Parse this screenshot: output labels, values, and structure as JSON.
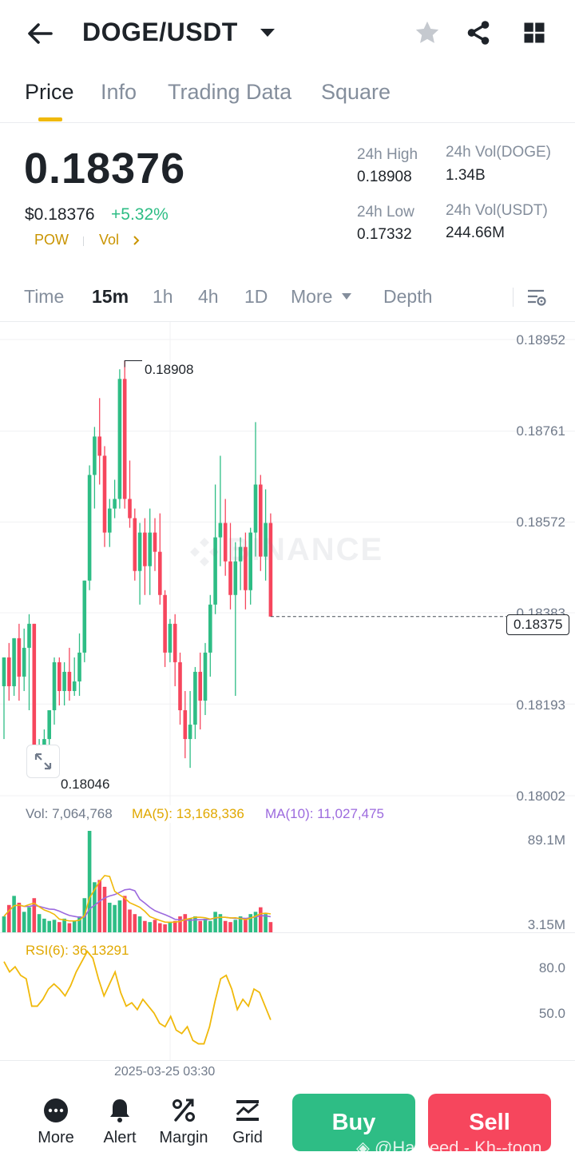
{
  "header": {
    "pair": "DOGE/USDT"
  },
  "tabs": [
    {
      "label": "Price"
    },
    {
      "label": "Info"
    },
    {
      "label": "Trading Data"
    },
    {
      "label": "Square"
    }
  ],
  "ticker": {
    "price": "0.18376",
    "usd_price": "$0.18376",
    "change": "+5.32%",
    "tag1": "POW",
    "tag2": "Vol",
    "high_label": "24h High",
    "high": "0.18908",
    "low_label": "24h Low",
    "low": "0.17332",
    "vol_base_label": "24h Vol(DOGE)",
    "vol_base": "1.34B",
    "vol_quote_label": "24h Vol(USDT)",
    "vol_quote": "244.66M"
  },
  "timeframes": [
    {
      "label": "Time"
    },
    {
      "label": "15m"
    },
    {
      "label": "1h"
    },
    {
      "label": "4h"
    },
    {
      "label": "1D"
    },
    {
      "label": "More"
    },
    {
      "label": "Depth"
    }
  ],
  "chart": {
    "price_axis": [
      "0.18952",
      "0.18761",
      "0.18572",
      "0.18383",
      "0.18193",
      "0.18002"
    ],
    "current_price": "0.18375",
    "high_marker": "0.18908",
    "low_marker": "0.18046",
    "watermark": "BINANCE",
    "vol_label": "Vol: 7,064,768",
    "ma5_label": "MA(5): 13,168,336",
    "ma10_label": "MA(10): 11,027,475",
    "vol_axis": [
      "89.1M",
      "3.15M"
    ],
    "rsi_label": "RSI(6): 36.13291",
    "rsi_axis": [
      "80.0",
      "50.0"
    ],
    "time_label": "2025-03-25 03:30",
    "colors": {
      "up": "#2ebd85",
      "down": "#f6465d",
      "ma5": "#f0b90b",
      "ma10": "#9c6ade"
    }
  },
  "chart_data": {
    "type": "candlestick",
    "y_axis_ticks": [
      0.18952,
      0.18761,
      0.18572,
      0.18383,
      0.18193,
      0.18002
    ],
    "ylim": [
      0.18002,
      0.18952
    ],
    "candles": [
      {
        "o": 0.1823,
        "h": 0.1829,
        "l": 0.1812,
        "c": 0.1829
      },
      {
        "o": 0.1829,
        "h": 0.1832,
        "l": 0.182,
        "c": 0.1823
      },
      {
        "o": 0.1823,
        "h": 0.1833,
        "l": 0.1821,
        "c": 0.1833
      },
      {
        "o": 0.1833,
        "h": 0.1836,
        "l": 0.182,
        "c": 0.1825
      },
      {
        "o": 0.1825,
        "h": 0.1835,
        "l": 0.1822,
        "c": 0.1831
      },
      {
        "o": 0.1831,
        "h": 0.1838,
        "l": 0.1818,
        "c": 0.1836
      },
      {
        "o": 0.1836,
        "h": 0.1836,
        "l": 0.1805,
        "c": 0.1807
      },
      {
        "o": 0.1807,
        "h": 0.1812,
        "l": 0.18046,
        "c": 0.1809
      },
      {
        "o": 0.1809,
        "h": 0.1814,
        "l": 0.1806,
        "c": 0.1812
      },
      {
        "o": 0.1812,
        "h": 0.1818,
        "l": 0.181,
        "c": 0.1818
      },
      {
        "o": 0.1818,
        "h": 0.1829,
        "l": 0.1815,
        "c": 0.1828
      },
      {
        "o": 0.1828,
        "h": 0.1829,
        "l": 0.1819,
        "c": 0.1822
      },
      {
        "o": 0.1822,
        "h": 0.1828,
        "l": 0.1819,
        "c": 0.1826
      },
      {
        "o": 0.1826,
        "h": 0.1831,
        "l": 0.182,
        "c": 0.1822
      },
      {
        "o": 0.1822,
        "h": 0.1829,
        "l": 0.1821,
        "c": 0.1824
      },
      {
        "o": 0.1824,
        "h": 0.1834,
        "l": 0.1821,
        "c": 0.183
      },
      {
        "o": 0.183,
        "h": 0.1845,
        "l": 0.1828,
        "c": 0.1845
      },
      {
        "o": 0.1845,
        "h": 0.1869,
        "l": 0.1843,
        "c": 0.1867
      },
      {
        "o": 0.1867,
        "h": 0.1877,
        "l": 0.186,
        "c": 0.1875
      },
      {
        "o": 0.1875,
        "h": 0.1883,
        "l": 0.1865,
        "c": 0.1871
      },
      {
        "o": 0.1871,
        "h": 0.1873,
        "l": 0.1852,
        "c": 0.1855
      },
      {
        "o": 0.1855,
        "h": 0.1862,
        "l": 0.1852,
        "c": 0.186
      },
      {
        "o": 0.186,
        "h": 0.1866,
        "l": 0.1858,
        "c": 0.1862
      },
      {
        "o": 0.1862,
        "h": 0.1889,
        "l": 0.186,
        "c": 0.1887
      },
      {
        "o": 0.1887,
        "h": 0.18908,
        "l": 0.186,
        "c": 0.1862
      },
      {
        "o": 0.1862,
        "h": 0.187,
        "l": 0.1856,
        "c": 0.1858
      },
      {
        "o": 0.1858,
        "h": 0.186,
        "l": 0.1845,
        "c": 0.1847
      },
      {
        "o": 0.1847,
        "h": 0.1857,
        "l": 0.184,
        "c": 0.1855
      },
      {
        "o": 0.1855,
        "h": 0.1858,
        "l": 0.1842,
        "c": 0.1848
      },
      {
        "o": 0.1848,
        "h": 0.186,
        "l": 0.1842,
        "c": 0.1855
      },
      {
        "o": 0.1855,
        "h": 0.1858,
        "l": 0.1847,
        "c": 0.1851
      },
      {
        "o": 0.1851,
        "h": 0.1859,
        "l": 0.184,
        "c": 0.1842
      },
      {
        "o": 0.1842,
        "h": 0.1843,
        "l": 0.1827,
        "c": 0.183
      },
      {
        "o": 0.183,
        "h": 0.1837,
        "l": 0.1828,
        "c": 0.1836
      },
      {
        "o": 0.1836,
        "h": 0.1838,
        "l": 0.1823,
        "c": 0.1828
      },
      {
        "o": 0.1828,
        "h": 0.183,
        "l": 0.1815,
        "c": 0.1818
      },
      {
        "o": 0.1818,
        "h": 0.1822,
        "l": 0.1808,
        "c": 0.1812
      },
      {
        "o": 0.1812,
        "h": 0.1822,
        "l": 0.1806,
        "c": 0.1815
      },
      {
        "o": 0.1815,
        "h": 0.1827,
        "l": 0.1812,
        "c": 0.1826
      },
      {
        "o": 0.1826,
        "h": 0.183,
        "l": 0.1814,
        "c": 0.182
      },
      {
        "o": 0.182,
        "h": 0.1832,
        "l": 0.1817,
        "c": 0.183
      },
      {
        "o": 0.183,
        "h": 0.1842,
        "l": 0.1825,
        "c": 0.184
      },
      {
        "o": 0.184,
        "h": 0.1865,
        "l": 0.1838,
        "c": 0.1854
      },
      {
        "o": 0.1854,
        "h": 0.1871,
        "l": 0.1848,
        "c": 0.1857
      },
      {
        "o": 0.1857,
        "h": 0.1862,
        "l": 0.1846,
        "c": 0.1849
      },
      {
        "o": 0.1849,
        "h": 0.1857,
        "l": 0.1839,
        "c": 0.1842
      },
      {
        "o": 0.1842,
        "h": 0.1853,
        "l": 0.1821,
        "c": 0.1849
      },
      {
        "o": 0.1849,
        "h": 0.1854,
        "l": 0.1843,
        "c": 0.1852
      },
      {
        "o": 0.1852,
        "h": 0.1855,
        "l": 0.1839,
        "c": 0.1843
      },
      {
        "o": 0.1843,
        "h": 0.1856,
        "l": 0.184,
        "c": 0.1855
      },
      {
        "o": 0.1855,
        "h": 0.1878,
        "l": 0.185,
        "c": 0.1865
      },
      {
        "o": 0.1865,
        "h": 0.1867,
        "l": 0.1847,
        "c": 0.185
      },
      {
        "o": 0.185,
        "h": 0.1864,
        "l": 0.1845,
        "c": 0.1857
      },
      {
        "o": 0.1857,
        "h": 0.1859,
        "l": 0.18375,
        "c": 0.18375
      }
    ],
    "volumes": [
      14,
      24,
      32,
      26,
      18,
      22,
      30,
      16,
      12,
      10,
      11,
      9,
      12,
      8,
      10,
      14,
      30,
      89.1,
      44,
      46,
      40,
      26,
      24,
      28,
      32,
      20,
      16,
      14,
      10,
      9,
      11,
      8,
      7,
      9,
      10,
      14,
      16,
      12,
      14,
      10,
      12,
      10,
      18,
      16,
      10,
      9,
      11,
      14,
      12,
      16,
      18,
      22,
      16,
      9
    ],
    "rsi": [
      78,
      72,
      75,
      70,
      68,
      52,
      52,
      56,
      62,
      65,
      62,
      58,
      64,
      72,
      78,
      84,
      80,
      68,
      58,
      65,
      72,
      60,
      52,
      54,
      50,
      56,
      52,
      48,
      42,
      40,
      46,
      38,
      36,
      40,
      32,
      30,
      30,
      40,
      55,
      68,
      70,
      62,
      50,
      56,
      52,
      62,
      60,
      52,
      44
    ],
    "ylim_rsi": [
      20,
      90
    ]
  }
}
